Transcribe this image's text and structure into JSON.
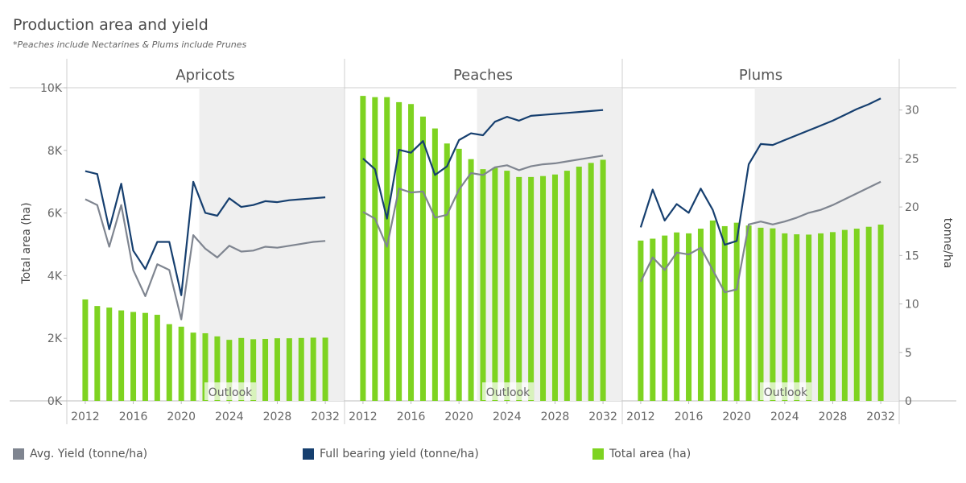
{
  "title": "Production area and yield",
  "subtitle": "*Peaches include Nectarines & Plums include Prunes",
  "colors": {
    "bar": "#7ed321",
    "avg_yield": "#7f8590",
    "full_bearing": "#163f6f",
    "outlook_shade": "#efefef"
  },
  "chart_data": {
    "type": "bar",
    "left_axis": {
      "label": "Total area (ha)",
      "ticks": [
        0,
        2000,
        4000,
        6000,
        8000,
        10000
      ],
      "tick_labels": [
        "0K",
        "2K",
        "4K",
        "6K",
        "8K",
        "10K"
      ],
      "ylim": [
        0,
        10000
      ]
    },
    "right_axis": {
      "label": "tonne/ha",
      "ticks": [
        0,
        5,
        10,
        15,
        20,
        25,
        30
      ],
      "tick_labels": [
        "0",
        "5",
        "10",
        "15",
        "20",
        "25",
        "30"
      ],
      "ylim": [
        0,
        32.3
      ]
    },
    "x_ticks": [
      2012,
      2016,
      2020,
      2024,
      2028,
      2032
    ],
    "x_tick_labels": [
      "2012",
      "2016",
      "2020",
      "2024",
      "2028",
      "2032"
    ],
    "xlim": [
      2011,
      2033
    ],
    "outlook_start": 2022,
    "outlook_label": "Outlook",
    "legend": [
      {
        "key": "avg_yield",
        "label": "Avg. Yield (tonne/ha)"
      },
      {
        "key": "full_bearing",
        "label": "Full bearing yield (tonne/ha)"
      },
      {
        "key": "bar",
        "label": "Total area (ha)"
      }
    ],
    "panels": [
      {
        "name": "Apricots",
        "years": [
          2012,
          2013,
          2014,
          2015,
          2016,
          2017,
          2018,
          2019,
          2020,
          2021,
          2022,
          2023,
          2024,
          2025,
          2026,
          2027,
          2028,
          2029,
          2030,
          2031,
          2032
        ],
        "total_area": [
          3240,
          3030,
          2980,
          2890,
          2840,
          2810,
          2750,
          2450,
          2370,
          2180,
          2160,
          2060,
          1950,
          2010,
          1970,
          1980,
          2000,
          2000,
          2010,
          2020,
          2020
        ],
        "avg_yield": [
          20.8,
          20.2,
          15.9,
          20.2,
          13.5,
          10.8,
          14.1,
          13.5,
          8.4,
          17.1,
          15.7,
          14.8,
          16.0,
          15.4,
          15.5,
          15.9,
          15.8,
          16.0,
          16.2,
          16.4,
          16.5
        ],
        "full_bearing_yield": [
          23.7,
          23.4,
          17.7,
          22.4,
          15.5,
          13.6,
          16.4,
          16.4,
          10.9,
          22.6,
          19.4,
          19.1,
          20.9,
          20.0,
          20.2,
          20.6,
          20.5,
          20.7,
          20.8,
          20.9,
          21.0
        ]
      },
      {
        "name": "Peaches",
        "years": [
          2012,
          2013,
          2014,
          2015,
          2016,
          2017,
          2018,
          2019,
          2020,
          2021,
          2022,
          2023,
          2024,
          2025,
          2026,
          2027,
          2028,
          2029,
          2030,
          2031,
          2032
        ],
        "total_area": [
          9740,
          9700,
          9700,
          9540,
          9480,
          9080,
          8700,
          8220,
          8050,
          7720,
          7400,
          7440,
          7350,
          7150,
          7150,
          7180,
          7230,
          7350,
          7480,
          7600,
          7700
        ],
        "avg_yield": [
          19.5,
          18.8,
          15.9,
          21.9,
          21.5,
          21.6,
          18.9,
          19.2,
          21.8,
          23.5,
          23.3,
          24.1,
          24.3,
          23.8,
          24.2,
          24.4,
          24.5,
          24.7,
          24.9,
          25.1,
          25.3
        ],
        "full_bearing_yield": [
          25.0,
          23.9,
          18.8,
          25.9,
          25.6,
          26.8,
          23.3,
          24.2,
          26.9,
          27.6,
          27.4,
          28.8,
          29.3,
          28.9,
          29.4,
          29.5,
          29.6,
          29.7,
          29.8,
          29.9,
          30.0
        ]
      },
      {
        "name": "Plums",
        "years": [
          2012,
          2013,
          2014,
          2015,
          2016,
          2017,
          2018,
          2019,
          2020,
          2021,
          2022,
          2023,
          2024,
          2025,
          2026,
          2027,
          2028,
          2029,
          2030,
          2031,
          2032
        ],
        "total_area": [
          5120,
          5180,
          5280,
          5380,
          5350,
          5500,
          5760,
          5580,
          5690,
          5600,
          5530,
          5510,
          5350,
          5320,
          5310,
          5350,
          5390,
          5460,
          5500,
          5560,
          5630
        ],
        "avg_yield": [
          12.3,
          14.8,
          13.5,
          15.3,
          15.1,
          15.8,
          13.5,
          11.2,
          11.5,
          18.2,
          18.5,
          18.2,
          18.5,
          18.9,
          19.4,
          19.7,
          20.2,
          20.8,
          21.4,
          22.0,
          22.6
        ],
        "full_bearing_yield": [
          17.9,
          21.8,
          18.6,
          20.3,
          19.4,
          21.9,
          19.7,
          16.1,
          16.5,
          24.4,
          26.5,
          26.4,
          26.9,
          27.4,
          27.9,
          28.4,
          28.9,
          29.5,
          30.1,
          30.6,
          31.2
        ]
      }
    ]
  }
}
